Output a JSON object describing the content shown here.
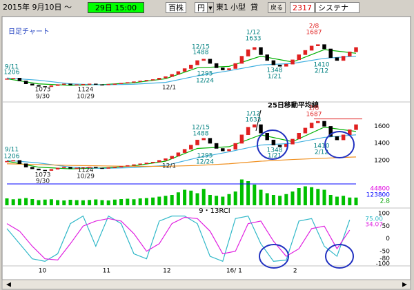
{
  "toolbar": {
    "date": "2015年 9月10日 ～",
    "time": "29日 15:00",
    "unit": "百株",
    "currency": "円",
    "market": "東1",
    "size": "小型",
    "margin": "貸",
    "back": "戻る",
    "code": "2317",
    "name": "システナ"
  },
  "chart_data": [
    {
      "type": "candlestick",
      "title": "日足チャート",
      "ylim": [
        900,
        1940
      ],
      "annotations": [
        {
          "date": "9/11",
          "price": 1206
        },
        {
          "date": "9/30",
          "price": 1073
        },
        {
          "date": "10/29",
          "price": 1124
        },
        {
          "date": "12/1"
        },
        {
          "date": "12/15",
          "price": 1488
        },
        {
          "date": "12/24",
          "price": 1295
        },
        {
          "date": "1/12",
          "price": 1633
        },
        {
          "date": "1/21",
          "price": 1348
        },
        {
          "date": "2/8",
          "price": 1687
        },
        {
          "date": "2/12",
          "price": 1410
        }
      ]
    },
    {
      "type": "candlestick",
      "note": "25日移動平均線",
      "ylim": [
        1020,
        1830
      ],
      "yticks": [
        1600,
        1400,
        1200
      ],
      "open": [
        1180,
        1190,
        1200,
        1160,
        1120,
        1100,
        1085,
        1080,
        1095,
        1110,
        1120,
        1105,
        1110,
        1115,
        1120,
        1110,
        1105,
        1115,
        1120,
        1130,
        1140,
        1150,
        1160,
        1170,
        1180,
        1200,
        1220,
        1250,
        1290,
        1330,
        1380,
        1440,
        1460,
        1400,
        1340,
        1310,
        1330,
        1400,
        1500,
        1590,
        1620,
        1520,
        1440,
        1380,
        1360,
        1390,
        1450,
        1520,
        1580,
        1640,
        1660,
        1600,
        1480,
        1440,
        1500,
        1560
      ],
      "close": [
        1190,
        1200,
        1160,
        1120,
        1100,
        1085,
        1080,
        1095,
        1110,
        1120,
        1105,
        1110,
        1115,
        1120,
        1110,
        1105,
        1115,
        1120,
        1130,
        1140,
        1150,
        1160,
        1170,
        1180,
        1200,
        1220,
        1250,
        1290,
        1330,
        1380,
        1440,
        1460,
        1400,
        1340,
        1310,
        1330,
        1400,
        1500,
        1590,
        1620,
        1520,
        1440,
        1380,
        1360,
        1390,
        1450,
        1520,
        1580,
        1640,
        1660,
        1600,
        1480,
        1440,
        1500,
        1560,
        1620
      ],
      "ma_x": [
        0,
        5,
        10,
        15,
        20,
        25,
        30,
        35,
        40,
        45,
        50,
        55
      ],
      "moving_averages": [
        {
          "color": "#00b000",
          "values": [
            1190,
            1120,
            1100,
            1110,
            1135,
            1190,
            1340,
            1360,
            1500,
            1420,
            1590,
            1540
          ]
        },
        {
          "color": "#40b0e0",
          "values": [
            1200,
            1170,
            1120,
            1105,
            1115,
            1140,
            1230,
            1300,
            1380,
            1400,
            1470,
            1500
          ]
        },
        {
          "color": "#f09020",
          "values": [
            1160,
            1150,
            1140,
            1135,
            1130,
            1130,
            1140,
            1160,
            1190,
            1210,
            1225,
            1240
          ]
        }
      ]
    },
    {
      "type": "bar",
      "color": "#00c000",
      "ylim": [
        0,
        160000
      ],
      "values": [
        40000,
        35000,
        38000,
        42000,
        36000,
        30000,
        33000,
        35000,
        30000,
        28000,
        32000,
        30000,
        29000,
        31000,
        34000,
        30000,
        28000,
        33000,
        36000,
        38000,
        35000,
        40000,
        42000,
        45000,
        50000,
        55000,
        60000,
        75000,
        90000,
        85000,
        70000,
        95000,
        60000,
        55000,
        50000,
        65000,
        80000,
        150000,
        140000,
        120000,
        90000,
        70000,
        60000,
        55000,
        65000,
        80000,
        100000,
        110000,
        105000,
        95000,
        90000,
        60000,
        50000,
        55000,
        45000,
        44800
      ],
      "stats": [
        {
          "value": 44800,
          "color": "#e000e0"
        },
        {
          "value": 123800,
          "color": "#0000ff"
        },
        {
          "value": 2.8,
          "color": "#00a000"
        }
      ]
    },
    {
      "type": "line",
      "title": "9・13RCI",
      "ylim": [
        -100,
        100
      ],
      "yticks": [
        100,
        50,
        0,
        -50,
        -80,
        -100
      ],
      "xlim": [
        0,
        55
      ],
      "xticks": [
        {
          "value": 5.6,
          "label": "10"
        },
        {
          "value": 15.7,
          "label": "11"
        },
        {
          "value": 25.2,
          "label": "12"
        },
        {
          "value": 35.8,
          "label": "16/ 1"
        },
        {
          "value": 45.4,
          "label": "2"
        }
      ],
      "x": [
        0,
        2,
        4,
        6,
        8,
        10,
        12,
        14,
        16,
        18,
        20,
        22,
        24,
        26,
        28,
        30,
        32,
        34,
        36,
        38,
        40,
        42,
        44,
        46,
        48,
        50,
        52,
        54
      ],
      "series": [
        {
          "color": "#30b8c8",
          "current": {
            "value": 75,
            "label": "75.00"
          },
          "values": [
            40,
            -20,
            -80,
            -90,
            -60,
            60,
            90,
            -30,
            90,
            60,
            -60,
            -80,
            70,
            90,
            90,
            60,
            -70,
            -90,
            80,
            90,
            -20,
            -90,
            -85,
            70,
            80,
            -30,
            -70,
            75
          ]
        },
        {
          "color": "#e020e0",
          "current": 34.07,
          "values": [
            60,
            30,
            -30,
            -80,
            -85,
            -20,
            50,
            70,
            80,
            70,
            20,
            -50,
            -20,
            60,
            85,
            80,
            30,
            -60,
            -50,
            60,
            70,
            -10,
            -70,
            -40,
            40,
            50,
            -40,
            34.07
          ]
        }
      ]
    }
  ]
}
